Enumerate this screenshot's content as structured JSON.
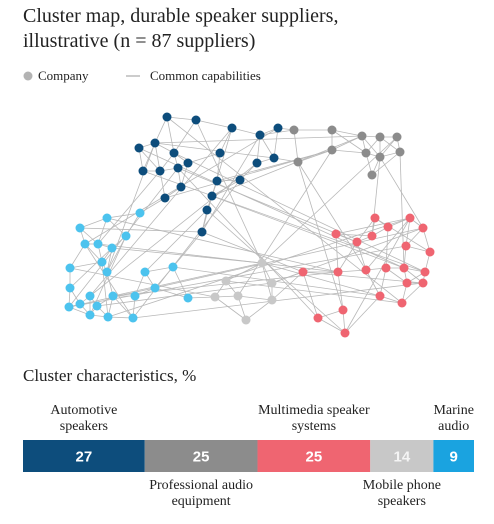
{
  "chart_data": {
    "type": "stacked-bar-100",
    "title": "Cluster map, durable speaker suppliers, illustrative (n = 87 suppliers)",
    "legend": [
      "Company",
      "Common capabilities"
    ],
    "subtitle": "Cluster characteristics, %",
    "categories": [
      "Automotive speakers",
      "Professional audio equipment",
      "Multimedia speaker systems",
      "Mobile phone speakers",
      "Marine audio"
    ],
    "values": [
      27,
      25,
      25,
      14,
      9
    ],
    "colors": [
      "#0d4d7c",
      "#8c8c8c",
      "#ef6571",
      "#c8c8c8",
      "#1aa3e0"
    ]
  }
}
